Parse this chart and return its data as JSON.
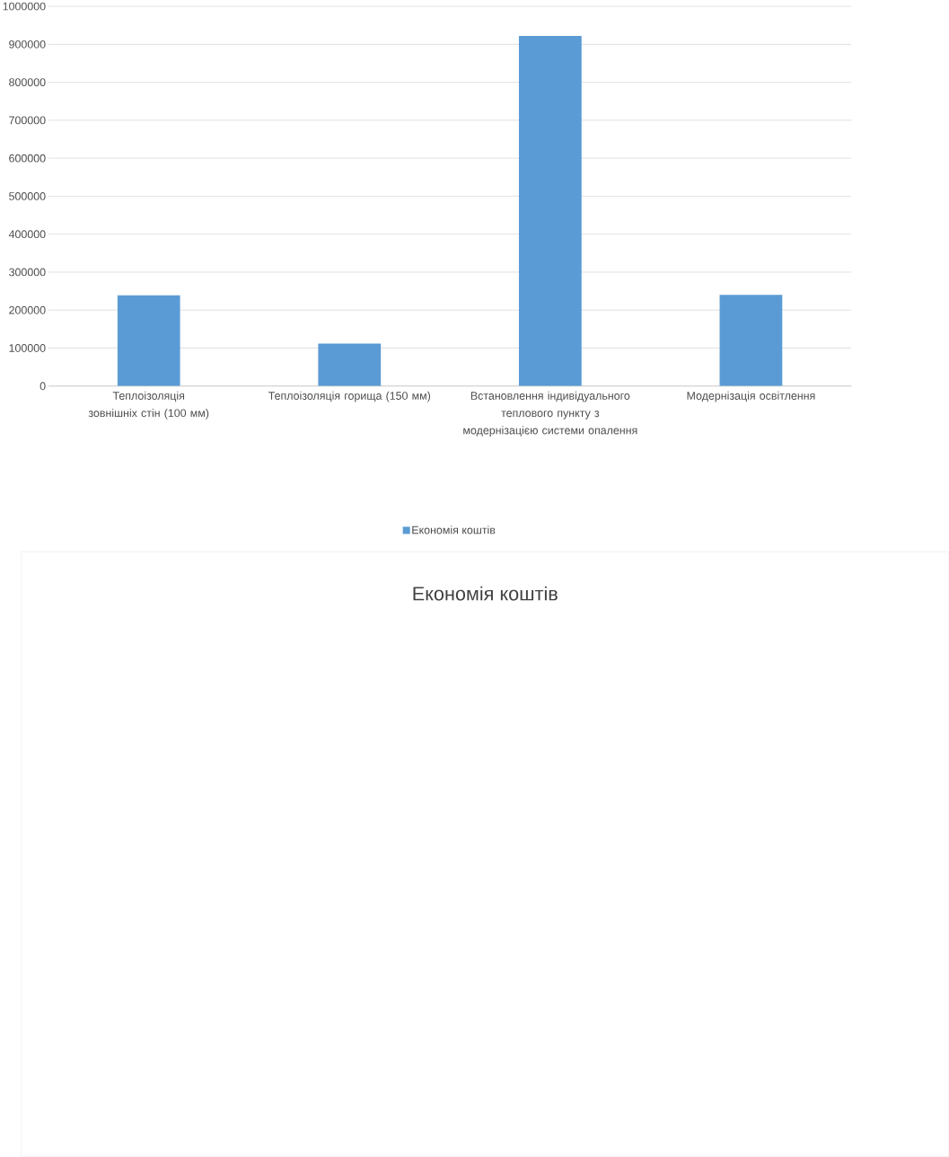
{
  "chart_data": {
    "type": "bar",
    "title": "Економія коштів",
    "categories": [
      "Теплоізоляція зовнішніх стін (100 мм)",
      "Теплоізоляція горища (150 мм)",
      "Встановлення індивідуального теплового пункту з модернізацією системи опалення",
      "Модернізація освітлення"
    ],
    "series": [
      {
        "name": "Економія коштів",
        "color": "#5b9bd5",
        "values": [
          239000,
          112000,
          922000,
          240000
        ]
      }
    ],
    "ylim": [
      0,
      1000000
    ],
    "yticks": [
      0,
      100000,
      200000,
      300000,
      400000,
      500000,
      600000,
      700000,
      800000,
      900000,
      1000000
    ],
    "grid": "y",
    "legend": "bottom"
  }
}
